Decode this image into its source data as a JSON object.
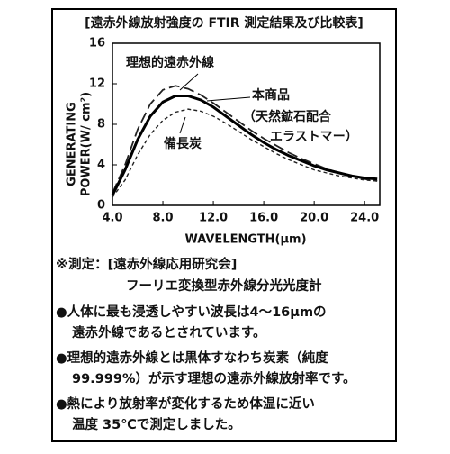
{
  "chart_data": {
    "type": "line",
    "title": "[遠赤外線放射強度の FTIR 測定結果及び比較表]",
    "xlabel": "WAVELENGTH(μm)",
    "ylabel": [
      "GENERATING",
      "POWER(W/ cm²)"
    ],
    "x": [
      4,
      5,
      6,
      7,
      8,
      9,
      10,
      11,
      12,
      13,
      14,
      15,
      16,
      17,
      18,
      19,
      20,
      21,
      22,
      23,
      24,
      25
    ],
    "xlim": [
      4,
      25.2
    ],
    "xticks": [
      {
        "value": 4,
        "label": "4.0"
      },
      {
        "value": 8,
        "label": "8.0"
      },
      {
        "value": 12,
        "label": "12.0"
      },
      {
        "value": 16,
        "label": "16.0"
      },
      {
        "value": 20,
        "label": "20.0"
      },
      {
        "value": 24,
        "label": "24.0"
      }
    ],
    "ylim": [
      0,
      16
    ],
    "yticks": [
      0,
      4,
      8,
      12,
      16
    ],
    "grid": false,
    "series": [
      {
        "name": "理想的遠赤外線",
        "color": "#222222",
        "dash": "12 5",
        "width": 1.8,
        "values": [
          1.2,
          4.0,
          7.5,
          10.0,
          11.4,
          11.8,
          11.5,
          10.9,
          10.1,
          9.2,
          8.3,
          7.4,
          6.6,
          5.9,
          5.2,
          4.6,
          4.1,
          3.6,
          3.2,
          2.9,
          2.6,
          2.4
        ]
      },
      {
        "name": "本商品",
        "label_lines": [
          "（天然鉱石配合",
          "エラストマー）"
        ],
        "color": "#000000",
        "dash": "none",
        "width": 3,
        "values": [
          1.0,
          3.5,
          6.5,
          8.8,
          10.2,
          10.8,
          10.8,
          10.4,
          9.7,
          8.8,
          7.9,
          7.0,
          6.2,
          5.5,
          4.9,
          4.4,
          3.9,
          3.5,
          3.2,
          2.9,
          2.7,
          2.6
        ]
      },
      {
        "name": "備長炭",
        "color": "#222222",
        "dash": "4 3",
        "width": 1.4,
        "values": [
          0.8,
          2.5,
          5.0,
          7.0,
          8.4,
          9.2,
          9.5,
          9.3,
          8.8,
          8.1,
          7.3,
          6.5,
          5.8,
          5.1,
          4.5,
          4.0,
          3.5,
          3.2,
          2.9,
          2.7,
          2.5,
          2.4
        ]
      }
    ],
    "notes": {
      "measure": [
        "※測定：[遠赤外線応用研究会]",
        "フーリエ変換型赤外線分光光度計"
      ],
      "bullets": [
        [
          "●人体に最も浸透しやすい波長は4〜16μmの",
          "遠赤外線であるとされています。"
        ],
        [
          "●理想的遠赤外線とは黒体すなわち炭素（純度",
          "99.999%）が示す理想の遠赤外線放射率です。"
        ],
        [
          "●熱により放射率が変化するため体温に近い",
          "温度 35℃で測定しました。"
        ]
      ]
    }
  }
}
